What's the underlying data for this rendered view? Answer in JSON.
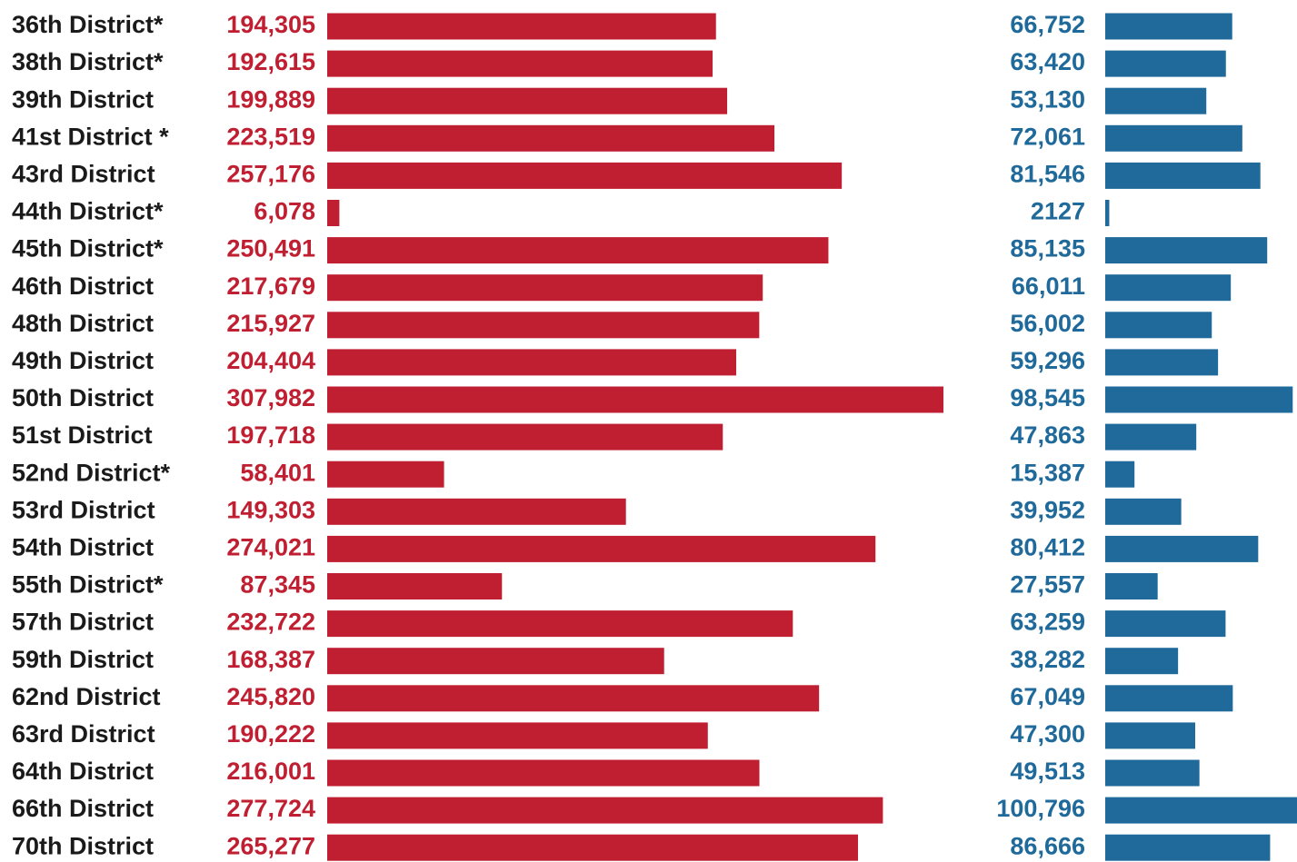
{
  "chart_data": {
    "type": "bar",
    "categories": [
      "36th District*",
      "38th District*",
      "39th District",
      "41st District *",
      "43rd District",
      "44th District*",
      "45th District*",
      "46th District",
      "48th District",
      "49th District",
      "50th District",
      "51st District",
      "52nd District*",
      "53rd District",
      "54th District",
      "55th District*",
      "57th District",
      "59th District",
      "62nd District",
      "63rd District",
      "64th District",
      "66th District",
      "70th District"
    ],
    "series": [
      {
        "color": "#c01f32",
        "values": [
          194305,
          192615,
          199889,
          223519,
          257176,
          6078,
          250491,
          217679,
          215927,
          204404,
          307982,
          197718,
          58401,
          149303,
          274021,
          87345,
          232722,
          168387,
          245820,
          190222,
          216001,
          277724,
          265277
        ],
        "value_labels": [
          "194,305",
          "192,615",
          "199,889",
          "223,519",
          "257,176",
          "6,078",
          "250,491",
          "217,679",
          "215,927",
          "204,404",
          "307,982",
          "197,718",
          "58,401",
          "149,303",
          "274,021",
          "87,345",
          "232,722",
          "168,387",
          "245,820",
          "190,222",
          "216,001",
          "277,724",
          "265,277"
        ]
      },
      {
        "color": "#1f6a9a",
        "values": [
          66752,
          63420,
          53130,
          72061,
          81546,
          2127,
          85135,
          66011,
          56002,
          59296,
          98545,
          47863,
          15387,
          39952,
          80412,
          27557,
          63259,
          38282,
          67049,
          47300,
          49513,
          100796,
          86666
        ],
        "value_labels": [
          "66,752",
          "63,420",
          "53,130",
          "72,061",
          "81,546",
          "2127",
          "85,135",
          "66,011",
          "56,002",
          "59,296",
          "98,545",
          "47,863",
          "15,387",
          "39,952",
          "80,412",
          "27,557",
          "63,259",
          "38,282",
          "67,049",
          "47,300",
          "49,513",
          "100,796",
          "86,666"
        ]
      }
    ]
  }
}
